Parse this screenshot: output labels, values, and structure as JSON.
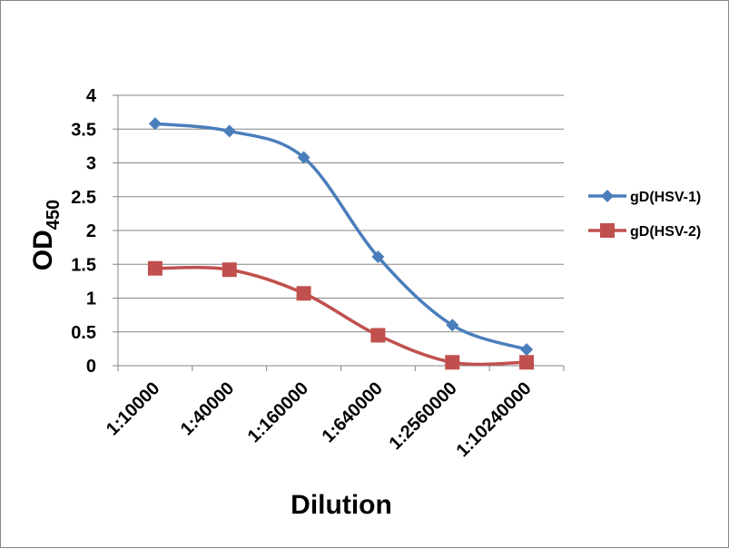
{
  "chart_data": {
    "type": "line",
    "title": "",
    "xlabel": "Dilution",
    "ylabel": {
      "main": "OD",
      "subscript": "450"
    },
    "categories": [
      "1:10000",
      "1:40000",
      "1:160000",
      "1:640000",
      "1:2560000",
      "1:10240000"
    ],
    "ylim": [
      0,
      4
    ],
    "yticks": [
      "0",
      "0.5",
      "1",
      "1.5",
      "2",
      "2.5",
      "3",
      "3.5",
      "4"
    ],
    "grid": true,
    "smooth": true,
    "legend_position": "right",
    "series": [
      {
        "name": "gD(HSV-1)",
        "values": [
          3.58,
          3.47,
          3.08,
          1.61,
          0.6,
          0.24
        ],
        "color": "#4a7ebb",
        "marker": "diamond"
      },
      {
        "name": "gD(HSV-2)",
        "values": [
          1.44,
          1.42,
          1.07,
          0.45,
          0.05,
          0.05
        ],
        "color": "#c0504d",
        "marker": "square"
      }
    ]
  }
}
